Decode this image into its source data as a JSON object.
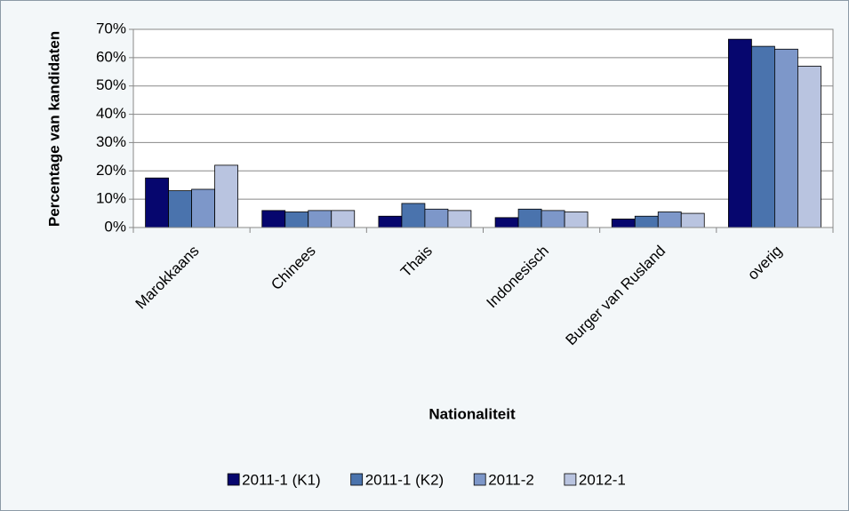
{
  "chart_data": {
    "type": "bar",
    "y_label": "Percentage van kandidaten",
    "x_label": "Nationaliteit",
    "categories": [
      "Marokkaans",
      "Chinees",
      "Thais",
      "Indonesisch",
      "Burger van Rusland",
      "overig"
    ],
    "series": [
      {
        "name": "2011-1 (K1)",
        "color": "#06066e",
        "values": [
          17.5,
          6,
          4,
          3.5,
          3,
          66.5
        ]
      },
      {
        "name": "2011-1 (K2)",
        "color": "#4a73ad",
        "values": [
          13,
          5.5,
          8.5,
          6.5,
          4,
          64
        ]
      },
      {
        "name": "2011-2",
        "color": "#7d97c9",
        "values": [
          13.5,
          6,
          6.5,
          6,
          5.5,
          63
        ]
      },
      {
        "name": "2012-1",
        "color": "#b9c4e0",
        "values": [
          22,
          6,
          6,
          5.5,
          5,
          57
        ]
      }
    ],
    "ylim": [
      0,
      70
    ],
    "yticks": [
      {
        "value": 0,
        "label": "0%"
      },
      {
        "value": 10,
        "label": "10%"
      },
      {
        "value": 20,
        "label": "20%"
      },
      {
        "value": 30,
        "label": "30%"
      },
      {
        "value": 40,
        "label": "40%"
      },
      {
        "value": 50,
        "label": "50%"
      },
      {
        "value": 60,
        "label": "60%"
      },
      {
        "value": 70,
        "label": "70%"
      }
    ],
    "grid": true,
    "legend": "bottom"
  }
}
